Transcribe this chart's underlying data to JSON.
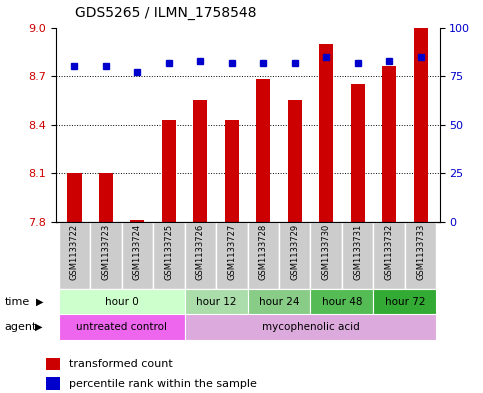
{
  "title": "GDS5265 / ILMN_1758548",
  "samples": [
    "GSM1133722",
    "GSM1133723",
    "GSM1133724",
    "GSM1133725",
    "GSM1133726",
    "GSM1133727",
    "GSM1133728",
    "GSM1133729",
    "GSM1133730",
    "GSM1133731",
    "GSM1133732",
    "GSM1133733"
  ],
  "bar_values": [
    8.1,
    8.1,
    7.81,
    8.43,
    8.55,
    8.43,
    8.68,
    8.55,
    8.9,
    8.65,
    8.76,
    9.0
  ],
  "bar_bottom": 7.8,
  "percentile_values": [
    80,
    80,
    77,
    82,
    83,
    82,
    82,
    82,
    85,
    82,
    83,
    85
  ],
  "ylim_left": [
    7.8,
    9.0
  ],
  "ylim_right": [
    0,
    100
  ],
  "yticks_left": [
    7.8,
    8.1,
    8.4,
    8.7,
    9.0
  ],
  "yticks_right": [
    0,
    25,
    50,
    75,
    100
  ],
  "bar_color": "#cc0000",
  "dot_color": "#0000cc",
  "grid_color": "#000000",
  "time_groups": [
    {
      "label": "hour 0",
      "start": 0,
      "end": 3,
      "color": "#ccffcc"
    },
    {
      "label": "hour 12",
      "start": 4,
      "end": 5,
      "color": "#aaddaa"
    },
    {
      "label": "hour 24",
      "start": 6,
      "end": 7,
      "color": "#88cc88"
    },
    {
      "label": "hour 48",
      "start": 8,
      "end": 9,
      "color": "#55bb55"
    },
    {
      "label": "hour 72",
      "start": 10,
      "end": 11,
      "color": "#33aa33"
    }
  ],
  "agent_groups": [
    {
      "label": "untreated control",
      "start": 0,
      "end": 3,
      "color": "#ee66ee"
    },
    {
      "label": "mycophenolic acid",
      "start": 4,
      "end": 11,
      "color": "#ddaadd"
    }
  ],
  "legend_bar_label": "transformed count",
  "legend_dot_label": "percentile rank within the sample",
  "xlabel_time": "time",
  "xlabel_agent": "agent",
  "xticklabel_bg": "#cccccc",
  "bar_width": 0.45
}
